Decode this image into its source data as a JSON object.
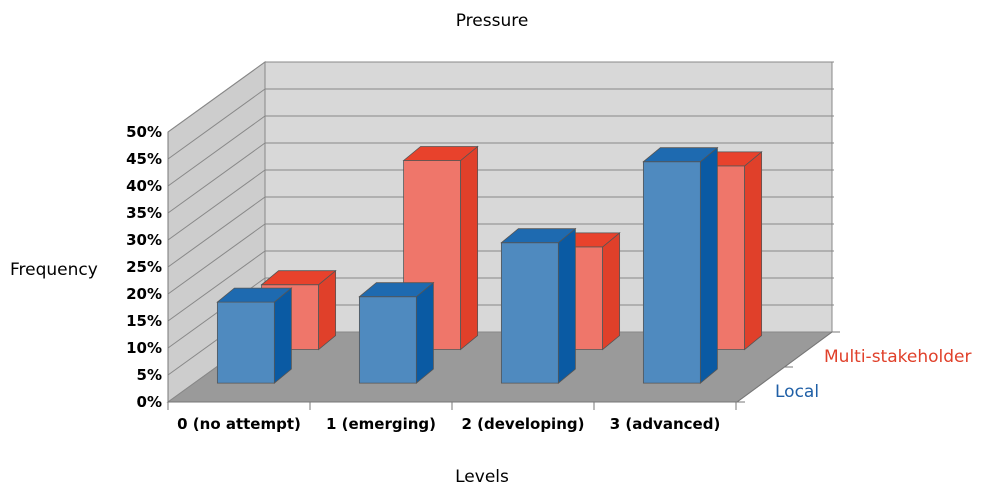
{
  "chart_data": {
    "type": "bar",
    "title": "Pressure",
    "xlabel": "Levels",
    "ylabel": "Frequency",
    "y_ticks": [
      "0%",
      "5%",
      "10%",
      "15%",
      "20%",
      "25%",
      "30%",
      "35%",
      "40%",
      "45%",
      "50%"
    ],
    "ylim": [
      0,
      50
    ],
    "categories": [
      "0 (no attempt)",
      "1 (emerging)",
      "2 (developing)",
      "3 (advanced)"
    ],
    "series": [
      {
        "name": "Local",
        "values": [
          15,
          16,
          26,
          41
        ],
        "color": "#4f8abf"
      },
      {
        "name": "Multi-stakeholder",
        "values": [
          12,
          35,
          19,
          34
        ],
        "color": "#ef766a"
      }
    ],
    "grid": true,
    "projection": "3d",
    "colors": {
      "local_side": "#0a5aa3",
      "local_top": "#1e6ab0",
      "multi_side": "#e0402a",
      "multi_top": "#e8422c",
      "floor": "#9a9a9a",
      "wall": "#d8d8d8"
    }
  }
}
